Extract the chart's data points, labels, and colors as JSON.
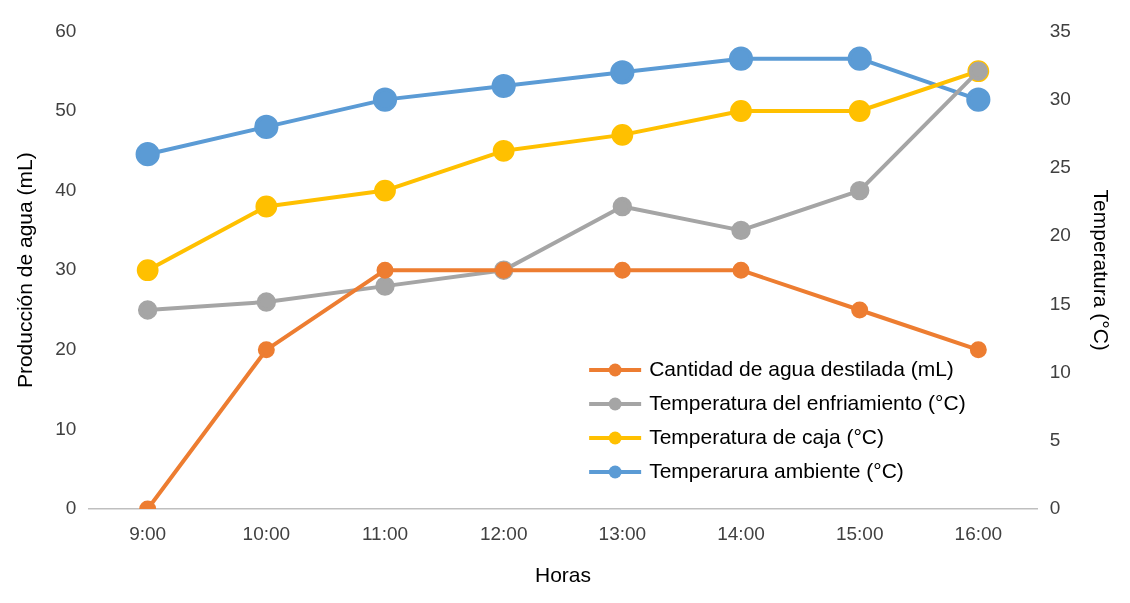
{
  "chart_data": {
    "type": "line",
    "xlabel": "Horas",
    "ylabel": "Producción de agua (mL)",
    "y2label": "Temperatura (°C)",
    "categories": [
      "9:00",
      "10:00",
      "11:00",
      "12:00",
      "13:00",
      "14:00",
      "15:00",
      "16:00"
    ],
    "series": [
      {
        "name": "Cantidad de agua destilada (mL)",
        "color": "#ed7d31",
        "values": [
          0,
          20,
          30,
          30,
          30,
          30,
          25,
          20
        ]
      },
      {
        "name": "Temperatura del enfriamiento (°C)",
        "color": "#a5a5a5",
        "values": [
          25,
          26,
          28,
          30,
          38,
          35,
          40,
          55
        ]
      },
      {
        "name": "Temperatura de caja (°C)",
        "color": "#ffc000",
        "values": [
          30,
          38,
          40,
          45,
          47,
          50,
          50,
          55
        ]
      },
      {
        "name": "Temperarura ambiente (°C)",
        "color": "#5b9bd5",
        "values": [
          26,
          28,
          30,
          31,
          32,
          33,
          33,
          30
        ],
        "axis": "y2"
      }
    ],
    "ylim": [
      0,
      60
    ],
    "yticks": [
      0,
      10,
      20,
      30,
      40,
      50,
      60
    ],
    "y2lim": [
      0,
      35
    ],
    "y2ticks": [
      0,
      5,
      10,
      15,
      20,
      25,
      30,
      35
    ],
    "grid": false,
    "legend": "bottom right",
    "marker": "circle",
    "line_style": "solid"
  }
}
